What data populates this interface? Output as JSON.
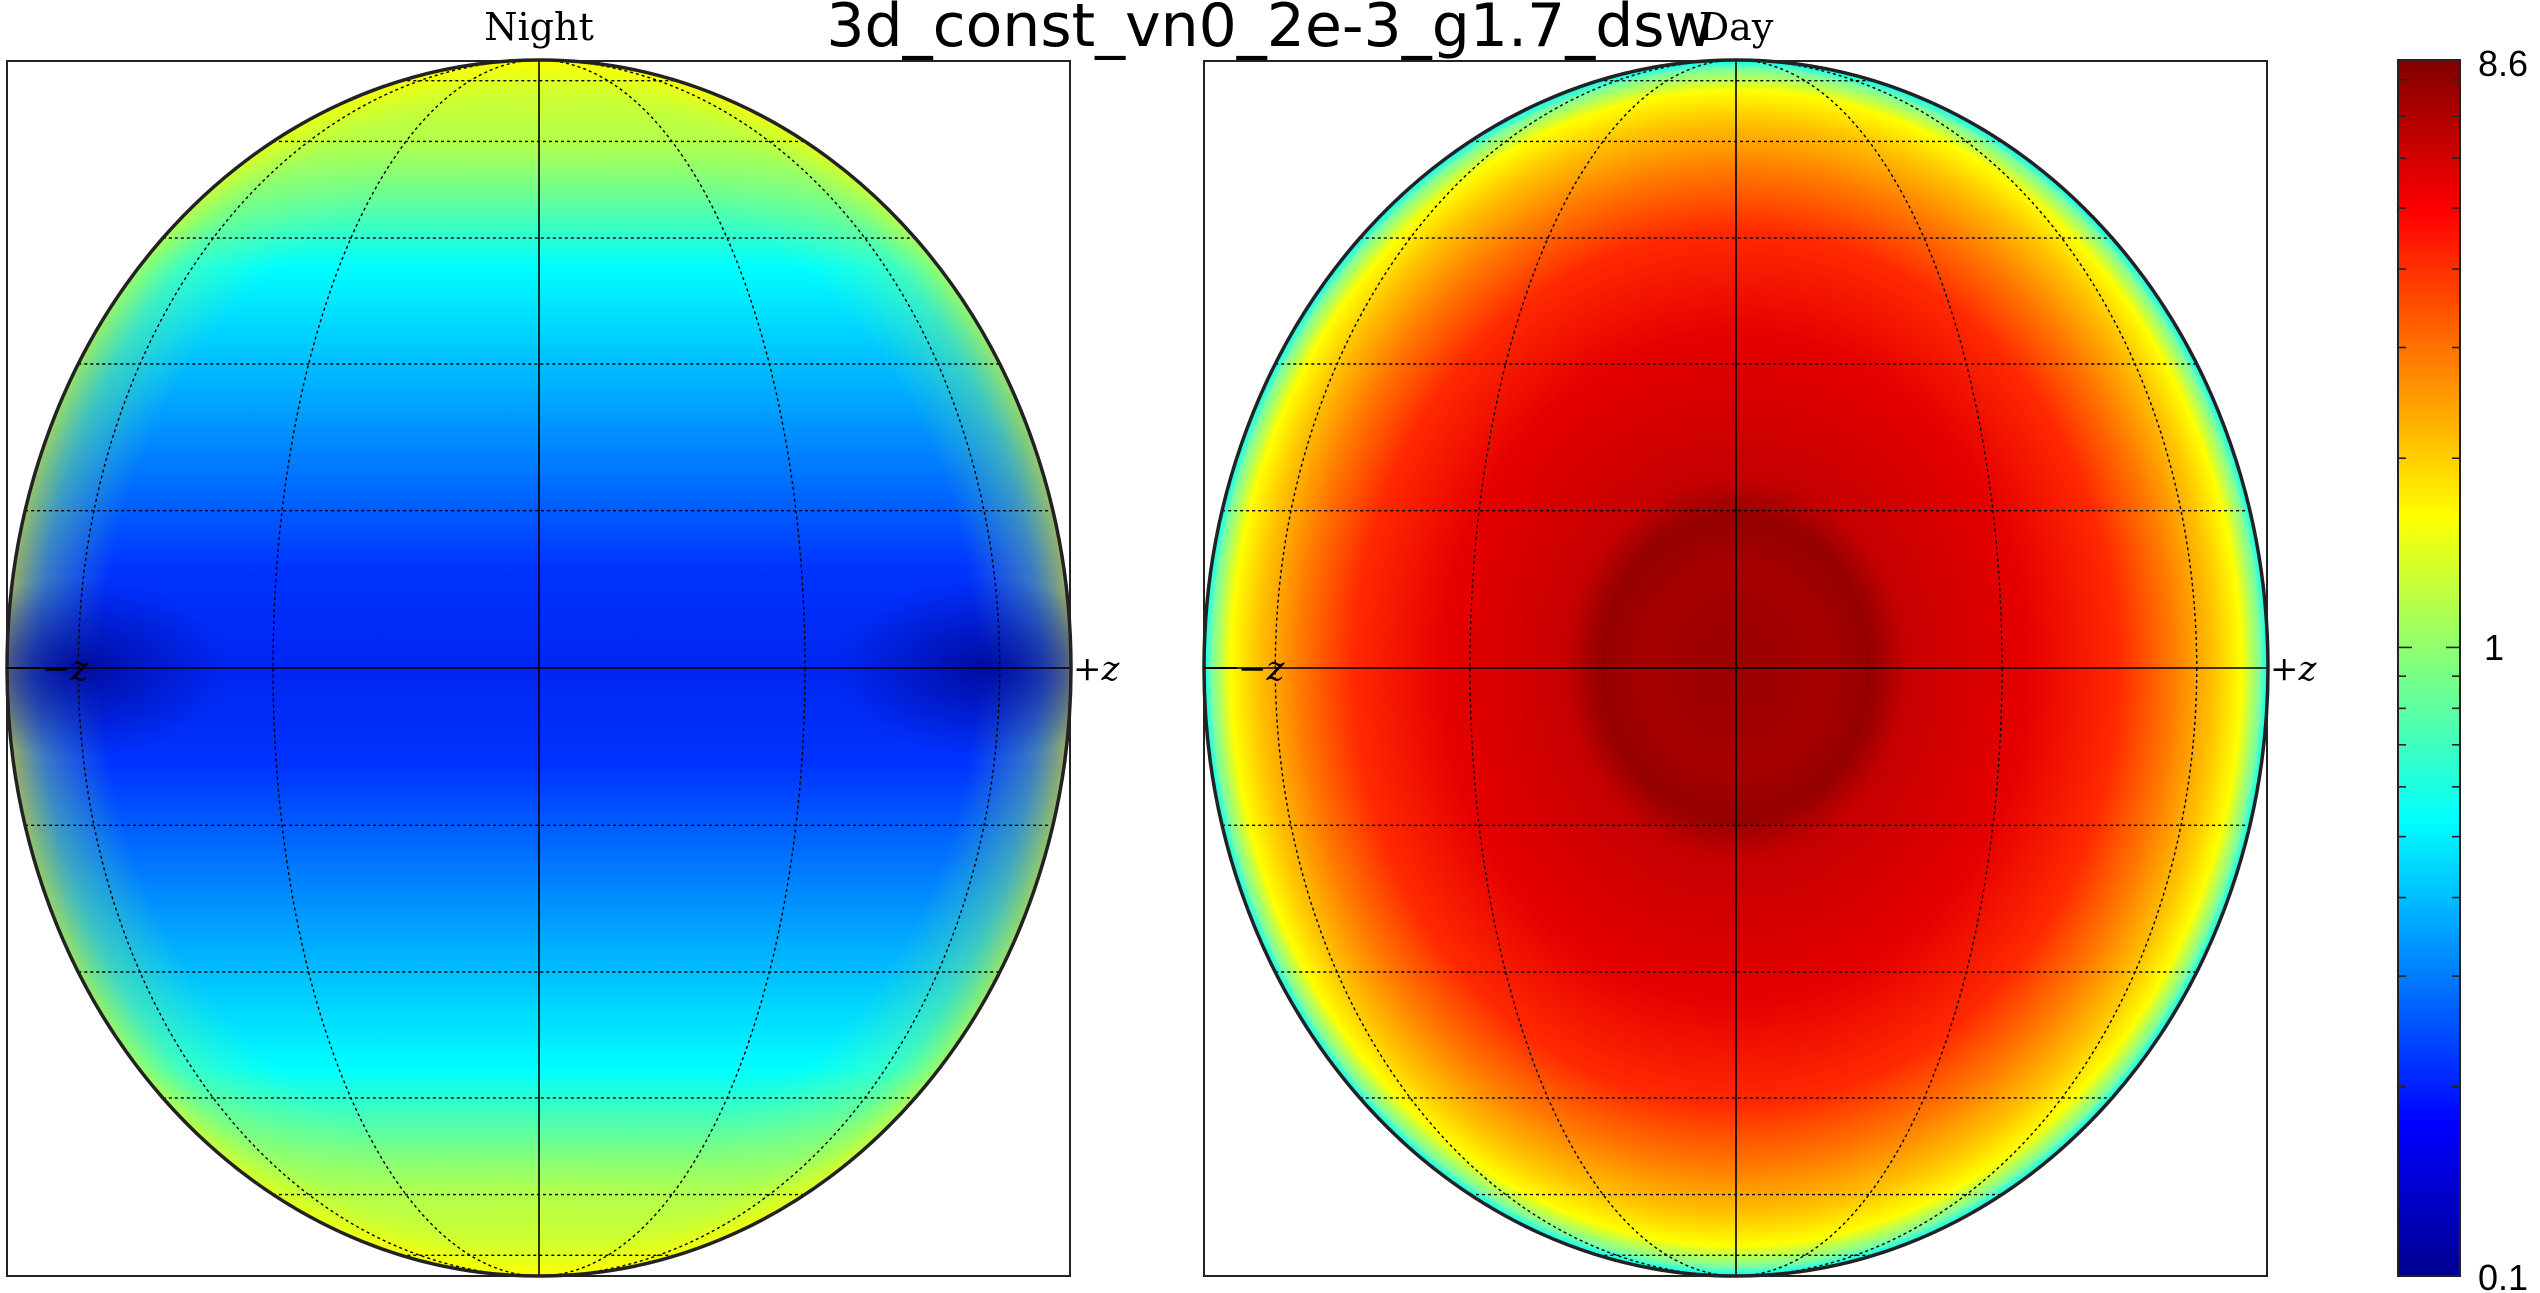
{
  "figure": {
    "title": "3d_const_vn0_2e-3_g1.7_dsw"
  },
  "chart_data": {
    "type": "heatmap",
    "title": "3d_const_vn0_2e-3_g1.7_dsw",
    "projection": "orthographic globe",
    "colormap": "jet",
    "color_scale": "log",
    "color_range": [
      0.1,
      8.6
    ],
    "colorbar_tick_labels": [
      "8.6",
      "1",
      "0.1"
    ],
    "grid": true,
    "panels": [
      {
        "title": "Night",
        "left_label": "−z",
        "right_label": "+z",
        "description_values": {
          "equator_band_min": 0.15,
          "equator_center": 0.35,
          "limb_pole_max": 2.8,
          "pole_cap": 1.6
        }
      },
      {
        "title": "Day",
        "left_label": "−z",
        "right_label": "+z",
        "description_values": {
          "center_max": 8.6,
          "center_ring": 7.2,
          "mid_disk": 5.5,
          "limb_min": 0.6
        }
      }
    ]
  },
  "colors": {
    "frame": "#000000",
    "background": "#ffffff"
  }
}
